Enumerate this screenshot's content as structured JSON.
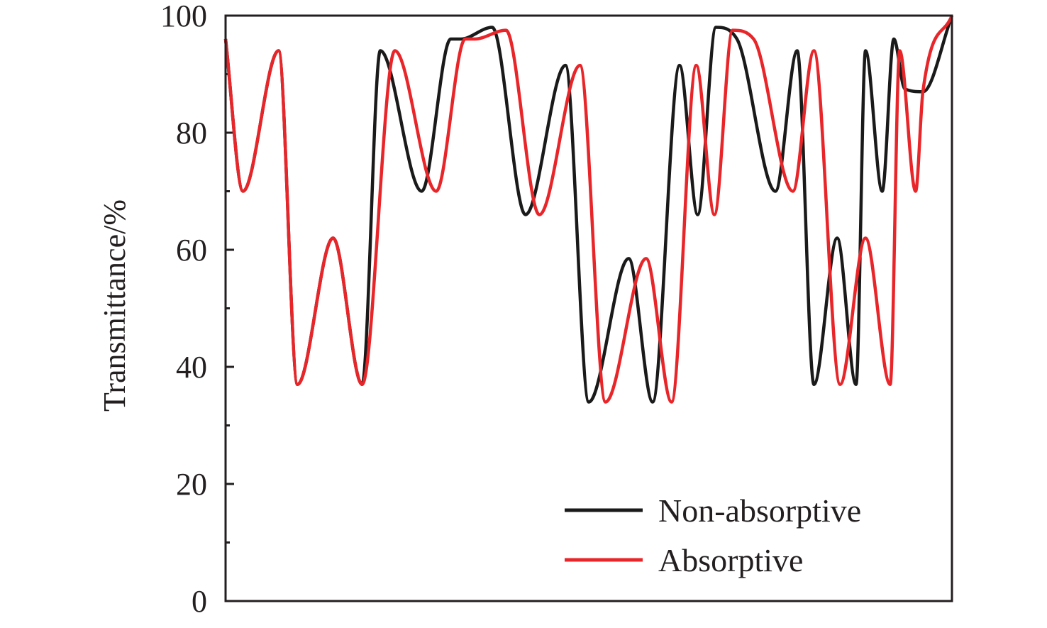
{
  "chart_data": {
    "type": "line",
    "title": "",
    "xlabel": "",
    "ylabel": "Transmittance/%",
    "ylim": [
      0,
      100
    ],
    "xlim": [
      0,
      100
    ],
    "y_ticks": [
      "0",
      "20",
      "40",
      "60",
      "80",
      "100"
    ],
    "grid": false,
    "legend_position": "bottom-right",
    "colors": {
      "Non-absorptive": "#1a1a1a",
      "Absorptive": "#e8262a"
    },
    "series": [
      {
        "name": "Non-absorptive",
        "x": [
          0,
          2.4,
          7.3,
          9.9,
          14.8,
          18.8,
          21.3,
          27.0,
          31.0,
          32.4,
          36.7,
          41.3,
          46.8,
          50.0,
          55.5,
          58.8,
          62.5,
          65.0,
          67.5,
          70.4,
          75.7,
          78.7,
          81.0,
          84.2,
          86.8,
          88.1,
          90.4,
          92.0,
          93.5,
          96.0,
          100
        ],
        "y": [
          96,
          70,
          94,
          37,
          62,
          37,
          94,
          70,
          96,
          96,
          98,
          66,
          91.5,
          34,
          58.5,
          34,
          91.5,
          66,
          98,
          96,
          70,
          94,
          37,
          62,
          37,
          94,
          70,
          96,
          87.5,
          87,
          100
        ]
      },
      {
        "name": "Absorptive",
        "x": [
          0,
          2.4,
          7.3,
          9.9,
          14.8,
          18.8,
          23.3,
          29.0,
          33.0,
          34.3,
          38.6,
          43.2,
          48.8,
          52.3,
          57.9,
          61.4,
          64.8,
          67.3,
          69.8,
          72.7,
          78.1,
          81.0,
          84.6,
          88.1,
          91.5,
          92.8,
          95.0,
          96.0,
          100
        ],
        "y": [
          96,
          70,
          94,
          37,
          62,
          37,
          94,
          70,
          96,
          96,
          97.5,
          66,
          91.5,
          34,
          58.5,
          34,
          91.5,
          66,
          97.5,
          96,
          70,
          94,
          37,
          62,
          37,
          94,
          70,
          87,
          100
        ]
      }
    ]
  }
}
